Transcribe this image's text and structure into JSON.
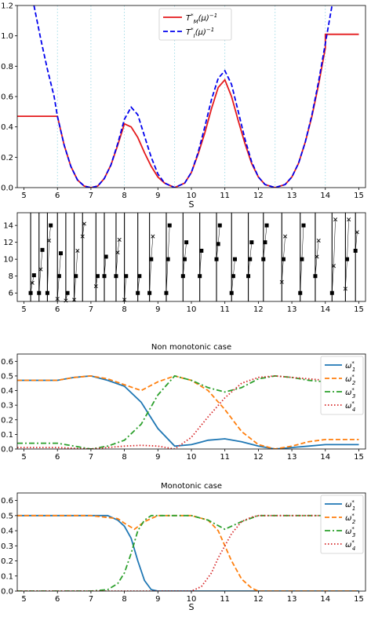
{
  "chart_data": [
    {
      "type": "line",
      "xlabel": "S",
      "ylabel": "",
      "xlim": [
        4.8,
        15.2
      ],
      "ylim": [
        0,
        1.2
      ],
      "xticks": [
        5,
        6,
        7,
        8,
        9,
        10,
        11,
        12,
        13,
        14,
        15
      ],
      "yticks": [
        0.0,
        0.2,
        0.4,
        0.6,
        0.8,
        1.0,
        1.2
      ],
      "vlines": [
        6,
        7,
        8,
        9.5,
        11,
        12.5,
        14
      ],
      "legend": "top-center",
      "series": [
        {
          "name": "T*_M(μ)^-1",
          "legend_html": "T<tspan font-size='7' baseline-shift='super'>*</tspan><tspan font-size='7' baseline-shift='sub'>M</tspan>(μ)<tspan font-size='7' baseline-shift='super'>−1</tspan>",
          "color": "#e41a1c",
          "style": "solid",
          "x": [
            4.8,
            5.0,
            6.0,
            6.2,
            6.4,
            6.6,
            6.8,
            7.0,
            7.2,
            7.4,
            7.6,
            7.8,
            8.0,
            8.2,
            8.4,
            8.6,
            8.8,
            9.0,
            9.2,
            9.5,
            9.8,
            10.0,
            10.2,
            10.4,
            10.6,
            10.8,
            11.0,
            11.2,
            11.4,
            11.6,
            11.8,
            12.0,
            12.2,
            12.5,
            12.8,
            13.0,
            13.2,
            13.4,
            13.6,
            13.8,
            14.0,
            14.0,
            15.0
          ],
          "y": [
            0.47,
            0.47,
            0.47,
            0.28,
            0.14,
            0.05,
            0.01,
            0.0,
            0.01,
            0.06,
            0.15,
            0.28,
            0.42,
            0.4,
            0.33,
            0.23,
            0.14,
            0.07,
            0.03,
            0.0,
            0.03,
            0.1,
            0.22,
            0.36,
            0.52,
            0.66,
            0.71,
            0.6,
            0.44,
            0.29,
            0.16,
            0.07,
            0.02,
            0.0,
            0.02,
            0.07,
            0.16,
            0.3,
            0.47,
            0.68,
            0.92,
            1.01,
            1.01
          ]
        },
        {
          "name": "T*_I(μ)^-1",
          "legend_html": "T<tspan font-size='7' baseline-shift='super'>*</tspan><tspan font-size='7' baseline-shift='sub'>I</tspan>(μ)<tspan font-size='7' baseline-shift='super'>−1</tspan>",
          "color": "#0000ee",
          "style": "dashed",
          "x": [
            5.3,
            5.5,
            5.7,
            5.9,
            6.0,
            6.2,
            6.4,
            6.6,
            6.8,
            7.0,
            7.2,
            7.4,
            7.6,
            7.8,
            8.0,
            8.2,
            8.4,
            8.6,
            8.8,
            9.0,
            9.2,
            9.5,
            9.8,
            10.0,
            10.2,
            10.4,
            10.6,
            10.8,
            11.0,
            11.2,
            11.4,
            11.6,
            11.8,
            12.0,
            12.2,
            12.5,
            12.8,
            13.0,
            13.2,
            13.4,
            13.6,
            13.8,
            14.0,
            14.2
          ],
          "y": [
            1.2,
            0.98,
            0.78,
            0.6,
            0.47,
            0.28,
            0.14,
            0.05,
            0.01,
            0.0,
            0.01,
            0.06,
            0.15,
            0.29,
            0.45,
            0.53,
            0.48,
            0.34,
            0.2,
            0.09,
            0.03,
            0.0,
            0.03,
            0.1,
            0.23,
            0.4,
            0.58,
            0.72,
            0.77,
            0.68,
            0.5,
            0.32,
            0.17,
            0.07,
            0.02,
            0.0,
            0.02,
            0.07,
            0.16,
            0.3,
            0.48,
            0.7,
            0.95,
            1.2
          ]
        }
      ]
    },
    {
      "type": "scatter",
      "title": "",
      "xlim": [
        4.8,
        15.2
      ],
      "ylim": [
        5,
        15.5
      ],
      "xticks": [
        5,
        6,
        7,
        8,
        9,
        10,
        11,
        12,
        13,
        14,
        15
      ],
      "yticks": [
        6,
        8,
        10,
        12,
        14
      ],
      "vlines": [
        5.2,
        5.45,
        5.7,
        6.0,
        6.25,
        6.5,
        6.75,
        7.15,
        7.4,
        7.75,
        8.0,
        8.4,
        8.75,
        9.25,
        9.75,
        10.25,
        10.75,
        11.2,
        11.7,
        12.15,
        12.7,
        13.25,
        13.7,
        14.2,
        14.6,
        14.9
      ],
      "markers": [
        {
          "x": 5.2,
          "y": 6.0,
          "shape": "square"
        },
        {
          "x": 5.25,
          "y": 7.2,
          "shape": "cross"
        },
        {
          "x": 5.3,
          "y": 8.1,
          "shape": "square"
        },
        {
          "x": 5.45,
          "y": 6.0,
          "shape": "square"
        },
        {
          "x": 5.5,
          "y": 8.8,
          "shape": "cross"
        },
        {
          "x": 5.55,
          "y": 11.1,
          "shape": "square"
        },
        {
          "x": 5.7,
          "y": 6.0,
          "shape": "square"
        },
        {
          "x": 5.75,
          "y": 12.2,
          "shape": "cross"
        },
        {
          "x": 5.8,
          "y": 14.0,
          "shape": "square"
        },
        {
          "x": 6.0,
          "y": 5.3,
          "shape": "cross"
        },
        {
          "x": 6.05,
          "y": 8.0,
          "shape": "square"
        },
        {
          "x": 6.1,
          "y": 10.7,
          "shape": "square"
        },
        {
          "x": 6.25,
          "y": 5.1,
          "shape": "cross"
        },
        {
          "x": 6.3,
          "y": 6.0,
          "shape": "square"
        },
        {
          "x": 6.5,
          "y": 5.2,
          "shape": "cross"
        },
        {
          "x": 6.55,
          "y": 8.0,
          "shape": "square"
        },
        {
          "x": 6.6,
          "y": 11.0,
          "shape": "cross"
        },
        {
          "x": 6.75,
          "y": 12.7,
          "shape": "cross"
        },
        {
          "x": 6.8,
          "y": 14.2,
          "shape": "cross"
        },
        {
          "x": 7.15,
          "y": 6.8,
          "shape": "cross"
        },
        {
          "x": 7.2,
          "y": 8.0,
          "shape": "square"
        },
        {
          "x": 7.4,
          "y": 8.0,
          "shape": "square"
        },
        {
          "x": 7.45,
          "y": 10.3,
          "shape": "square"
        },
        {
          "x": 7.75,
          "y": 8.0,
          "shape": "square"
        },
        {
          "x": 7.8,
          "y": 10.8,
          "shape": "cross"
        },
        {
          "x": 7.85,
          "y": 12.3,
          "shape": "cross"
        },
        {
          "x": 8.0,
          "y": 5.2,
          "shape": "cross"
        },
        {
          "x": 8.05,
          "y": 8.0,
          "shape": "square"
        },
        {
          "x": 8.4,
          "y": 6.0,
          "shape": "square"
        },
        {
          "x": 8.45,
          "y": 8.0,
          "shape": "square"
        },
        {
          "x": 8.75,
          "y": 6.0,
          "shape": "square"
        },
        {
          "x": 8.8,
          "y": 10.0,
          "shape": "square"
        },
        {
          "x": 8.85,
          "y": 12.7,
          "shape": "cross"
        },
        {
          "x": 9.25,
          "y": 6.0,
          "shape": "square"
        },
        {
          "x": 9.3,
          "y": 10.0,
          "shape": "square"
        },
        {
          "x": 9.35,
          "y": 14.0,
          "shape": "square"
        },
        {
          "x": 9.75,
          "y": 8.0,
          "shape": "square"
        },
        {
          "x": 9.8,
          "y": 10.0,
          "shape": "square"
        },
        {
          "x": 9.85,
          "y": 12.0,
          "shape": "square"
        },
        {
          "x": 10.25,
          "y": 8.0,
          "shape": "square"
        },
        {
          "x": 10.3,
          "y": 11.0,
          "shape": "square"
        },
        {
          "x": 10.75,
          "y": 10.0,
          "shape": "square"
        },
        {
          "x": 10.8,
          "y": 11.8,
          "shape": "square"
        },
        {
          "x": 10.85,
          "y": 14.0,
          "shape": "square"
        },
        {
          "x": 11.2,
          "y": 6.0,
          "shape": "square"
        },
        {
          "x": 11.25,
          "y": 8.0,
          "shape": "square"
        },
        {
          "x": 11.3,
          "y": 10.0,
          "shape": "square"
        },
        {
          "x": 11.7,
          "y": 8.0,
          "shape": "square"
        },
        {
          "x": 11.75,
          "y": 10.0,
          "shape": "square"
        },
        {
          "x": 11.8,
          "y": 12.0,
          "shape": "square"
        },
        {
          "x": 12.15,
          "y": 10.0,
          "shape": "square"
        },
        {
          "x": 12.2,
          "y": 12.0,
          "shape": "square"
        },
        {
          "x": 12.25,
          "y": 14.0,
          "shape": "square"
        },
        {
          "x": 12.7,
          "y": 7.3,
          "shape": "cross"
        },
        {
          "x": 12.75,
          "y": 10.0,
          "shape": "square"
        },
        {
          "x": 12.8,
          "y": 12.7,
          "shape": "cross"
        },
        {
          "x": 13.25,
          "y": 6.0,
          "shape": "square"
        },
        {
          "x": 13.3,
          "y": 10.0,
          "shape": "square"
        },
        {
          "x": 13.35,
          "y": 14.0,
          "shape": "square"
        },
        {
          "x": 13.7,
          "y": 8.0,
          "shape": "square"
        },
        {
          "x": 13.75,
          "y": 10.3,
          "shape": "cross"
        },
        {
          "x": 13.8,
          "y": 12.2,
          "shape": "cross"
        },
        {
          "x": 14.2,
          "y": 6.0,
          "shape": "square"
        },
        {
          "x": 14.25,
          "y": 9.2,
          "shape": "cross"
        },
        {
          "x": 14.3,
          "y": 14.7,
          "shape": "cross"
        },
        {
          "x": 14.6,
          "y": 6.5,
          "shape": "cross"
        },
        {
          "x": 14.65,
          "y": 10.0,
          "shape": "square"
        },
        {
          "x": 14.7,
          "y": 14.7,
          "shape": "cross"
        },
        {
          "x": 14.9,
          "y": 11.0,
          "shape": "square"
        },
        {
          "x": 14.95,
          "y": 13.2,
          "shape": "cross"
        }
      ]
    },
    {
      "type": "line",
      "title": "Non monotonic case",
      "xlabel": "",
      "xlim": [
        4.8,
        15.2
      ],
      "ylim": [
        0,
        0.65
      ],
      "xticks": [
        5,
        6,
        7,
        8,
        9,
        10,
        11,
        12,
        13,
        14,
        15
      ],
      "yticks": [
        0.0,
        0.1,
        0.2,
        0.3,
        0.4,
        0.5,
        0.6
      ],
      "legend": "top-right",
      "series": [
        {
          "name": "ω1*",
          "color": "#1f77b4",
          "style": "solid",
          "x": [
            4.8,
            5.0,
            6.0,
            6.5,
            7.0,
            7.5,
            8.0,
            8.5,
            9.0,
            9.5,
            10.0,
            10.5,
            11.0,
            11.5,
            12.0,
            12.5,
            13.0,
            13.5,
            14.0,
            15.0
          ],
          "y": [
            0.47,
            0.47,
            0.47,
            0.49,
            0.5,
            0.47,
            0.43,
            0.32,
            0.14,
            0.02,
            0.03,
            0.06,
            0.07,
            0.05,
            0.02,
            0.0,
            0.01,
            0.02,
            0.03,
            0.03
          ]
        },
        {
          "name": "ω2*",
          "color": "#ff7f0e",
          "style": "dashed",
          "x": [
            4.8,
            5.0,
            6.0,
            6.5,
            7.0,
            7.5,
            8.0,
            8.5,
            9.0,
            9.5,
            10.0,
            10.5,
            11.0,
            11.5,
            12.0,
            12.5,
            13.0,
            13.5,
            14.0,
            15.0
          ],
          "y": [
            0.47,
            0.47,
            0.47,
            0.49,
            0.5,
            0.48,
            0.44,
            0.4,
            0.46,
            0.5,
            0.47,
            0.4,
            0.27,
            0.12,
            0.03,
            0.0,
            0.02,
            0.05,
            0.065,
            0.065
          ]
        },
        {
          "name": "ω3*",
          "color": "#2ca02c",
          "style": "dashdot",
          "x": [
            4.8,
            5.0,
            6.0,
            6.5,
            7.0,
            7.5,
            8.0,
            8.5,
            9.0,
            9.5,
            10.0,
            10.5,
            11.0,
            11.5,
            12.0,
            12.5,
            13.0,
            13.5,
            14.0,
            15.0
          ],
          "y": [
            0.04,
            0.04,
            0.04,
            0.02,
            0.0,
            0.02,
            0.06,
            0.17,
            0.37,
            0.5,
            0.47,
            0.42,
            0.39,
            0.42,
            0.48,
            0.5,
            0.49,
            0.47,
            0.46,
            0.44
          ]
        },
        {
          "name": "ω4*",
          "color": "#d62728",
          "style": "dotted",
          "x": [
            4.8,
            5.0,
            6.0,
            6.5,
            7.0,
            7.5,
            8.0,
            8.5,
            9.0,
            9.5,
            10.0,
            10.5,
            11.0,
            11.5,
            12.0,
            12.5,
            13.0,
            13.5,
            14.0,
            15.0
          ],
          "y": [
            0.01,
            0.01,
            0.01,
            0.005,
            0.0,
            0.01,
            0.02,
            0.025,
            0.02,
            0.0,
            0.08,
            0.22,
            0.35,
            0.45,
            0.49,
            0.5,
            0.49,
            0.48,
            0.47,
            0.46
          ]
        }
      ]
    },
    {
      "type": "line",
      "title": "Monotonic case",
      "xlabel": "S",
      "xlim": [
        4.8,
        15.2
      ],
      "ylim": [
        0,
        0.65
      ],
      "xticks": [
        5,
        6,
        7,
        8,
        9,
        10,
        11,
        12,
        13,
        14,
        15
      ],
      "yticks": [
        0.0,
        0.1,
        0.2,
        0.3,
        0.4,
        0.5,
        0.6
      ],
      "legend": "top-right",
      "series": [
        {
          "name": "ω1*",
          "color": "#1f77b4",
          "style": "solid",
          "x": [
            4.8,
            5.0,
            7.0,
            7.5,
            7.8,
            8.0,
            8.2,
            8.4,
            8.6,
            8.8,
            9.0,
            10.0,
            15.0
          ],
          "y": [
            0.5,
            0.5,
            0.5,
            0.5,
            0.47,
            0.43,
            0.35,
            0.2,
            0.07,
            0.01,
            0.0,
            0.0,
            0.0
          ]
        },
        {
          "name": "ω2*",
          "color": "#ff7f0e",
          "style": "dashed",
          "x": [
            4.8,
            5.0,
            7.0,
            7.8,
            8.0,
            8.3,
            8.6,
            9.0,
            10.0,
            10.5,
            10.8,
            11.0,
            11.2,
            11.5,
            11.8,
            12.0,
            15.0
          ],
          "y": [
            0.5,
            0.5,
            0.5,
            0.48,
            0.45,
            0.41,
            0.46,
            0.5,
            0.5,
            0.47,
            0.4,
            0.3,
            0.2,
            0.08,
            0.02,
            0.0,
            0.0
          ]
        },
        {
          "name": "ω3*",
          "color": "#2ca02c",
          "style": "dashdot",
          "x": [
            4.8,
            5.0,
            7.0,
            7.5,
            7.8,
            8.0,
            8.2,
            8.4,
            8.6,
            8.8,
            9.0,
            10.0,
            10.5,
            11.0,
            11.5,
            12.0,
            15.0
          ],
          "y": [
            0.0,
            0.0,
            0.0,
            0.01,
            0.05,
            0.12,
            0.25,
            0.4,
            0.47,
            0.5,
            0.5,
            0.5,
            0.47,
            0.41,
            0.46,
            0.5,
            0.5
          ]
        },
        {
          "name": "ω4*",
          "color": "#d62728",
          "style": "dotted",
          "x": [
            4.8,
            5.0,
            10.0,
            10.3,
            10.6,
            10.8,
            11.0,
            11.2,
            11.5,
            11.8,
            12.0,
            15.0
          ],
          "y": [
            0.0,
            0.0,
            0.0,
            0.03,
            0.12,
            0.22,
            0.3,
            0.38,
            0.46,
            0.49,
            0.5,
            0.5
          ]
        }
      ]
    }
  ]
}
